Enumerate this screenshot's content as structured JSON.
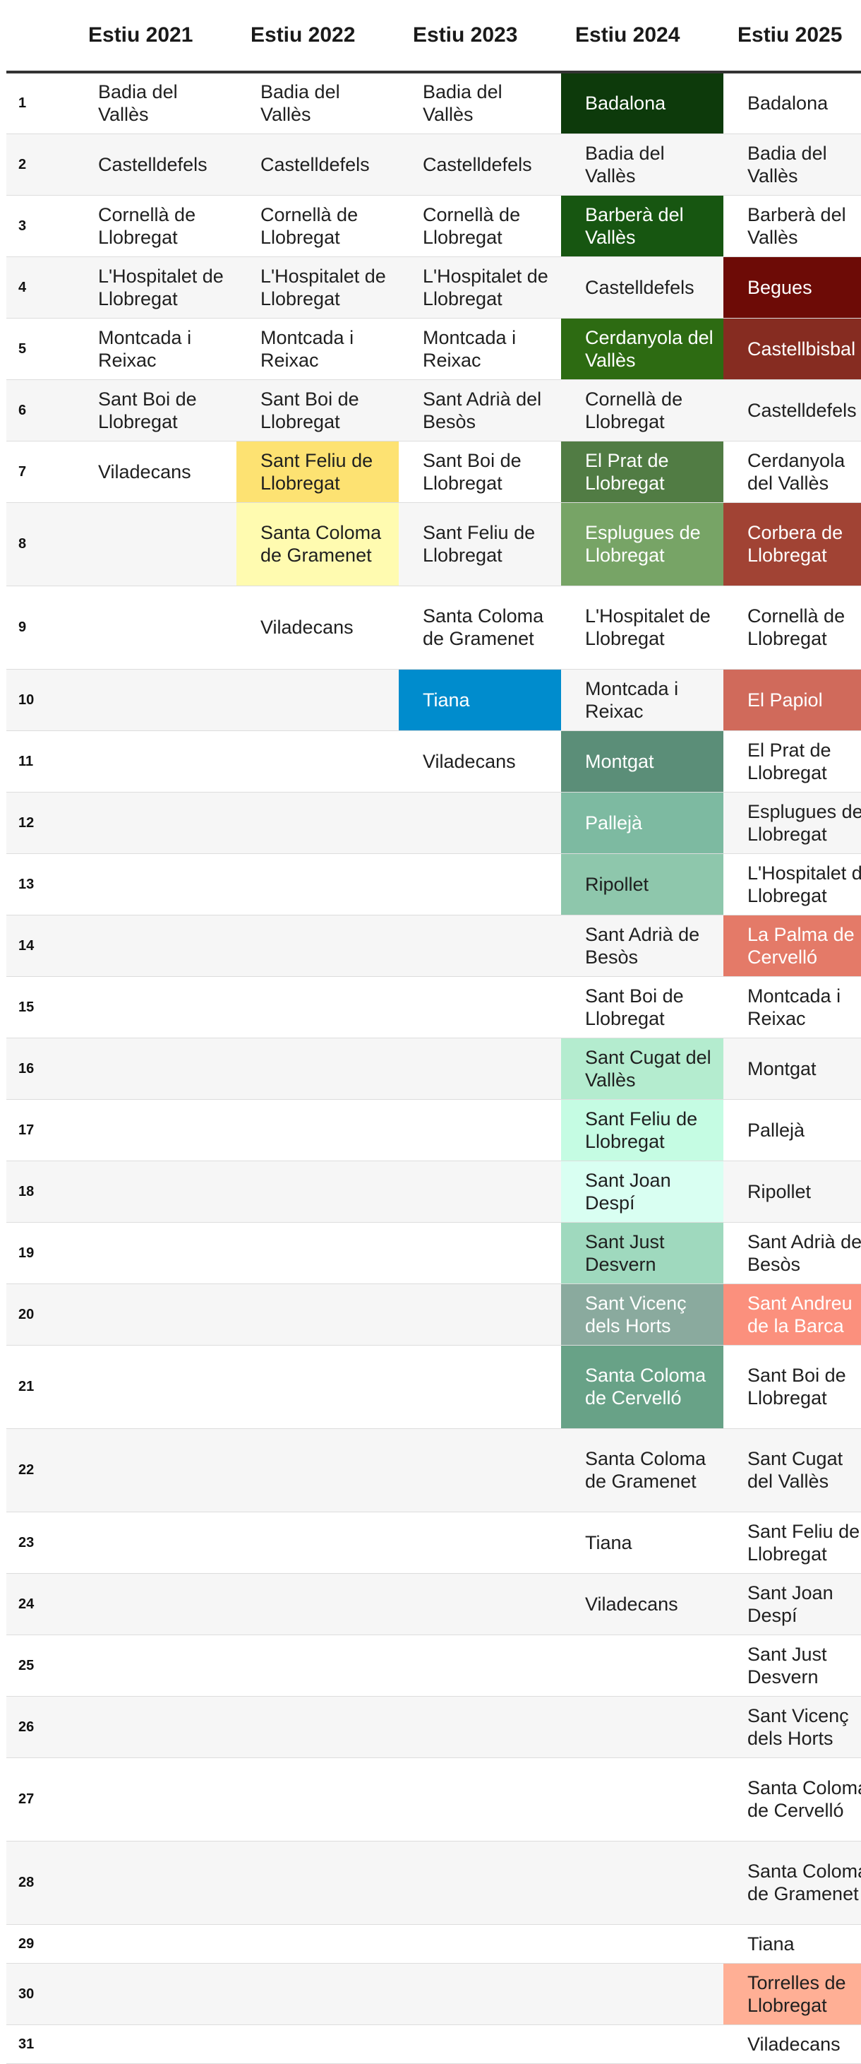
{
  "columns": [
    "",
    "Estiu 2021",
    "Estiu 2022",
    "Estiu 2023",
    "Estiu 2024",
    "Estiu 2025"
  ],
  "rows": [
    {
      "n": "1",
      "c": [
        "Badia del Vallès",
        "Badia del Vallès",
        "Badia del Vallès",
        "Badalona",
        "Badalona"
      ]
    },
    {
      "n": "2",
      "c": [
        "Castelldefels",
        "Castelldefels",
        "Castelldefels",
        "Badia del Vallès",
        "Badia del Vallès"
      ]
    },
    {
      "n": "3",
      "c": [
        "Cornellà de Llobregat",
        "Cornellà de Llobregat",
        "Cornellà de Llobregat",
        "Barberà del Vallès",
        "Barberà del Vallès"
      ]
    },
    {
      "n": "4",
      "c": [
        "L'Hospitalet de Llobregat",
        "L'Hospitalet de Llobregat",
        "L'Hospitalet de Llobregat",
        "Castelldefels",
        "Begues"
      ]
    },
    {
      "n": "5",
      "c": [
        "Montcada i Reixac",
        "Montcada i Reixac",
        "Montcada i Reixac",
        "Cerdanyola del Vallès",
        "Castellbisbal"
      ]
    },
    {
      "n": "6",
      "c": [
        "Sant Boi de Llobregat",
        "Sant Boi de Llobregat",
        "Sant Adrià del Besòs",
        "Cornellà de Llobregat",
        "Castelldefels"
      ]
    },
    {
      "n": "7",
      "c": [
        "Viladecans",
        "Sant Feliu de Llobregat",
        "Sant Boi de Llobregat",
        "El Prat de Llobregat",
        "Cerdanyola del Vallès"
      ]
    },
    {
      "n": "8",
      "c": [
        "",
        "Santa Coloma de Gramenet",
        "Sant Feliu de Llobregat",
        "Esplugues de Llobregat",
        "Corbera de Llobregat"
      ]
    },
    {
      "n": "9",
      "c": [
        "",
        "Viladecans",
        "Santa Coloma de Gramenet",
        "L'Hospitalet de Llobregat",
        "Cornellà de Llobregat"
      ]
    },
    {
      "n": "10",
      "c": [
        "",
        "",
        "Tiana",
        "Montcada i Reixac",
        "El Papiol"
      ]
    },
    {
      "n": "11",
      "c": [
        "",
        "",
        "Viladecans",
        "Montgat",
        "El Prat de Llobregat"
      ]
    },
    {
      "n": "12",
      "c": [
        "",
        "",
        "",
        "Pallejà",
        "Esplugues de Llobregat"
      ]
    },
    {
      "n": "13",
      "c": [
        "",
        "",
        "",
        "Ripollet",
        "L'Hospitalet de Llobregat"
      ]
    },
    {
      "n": "14",
      "c": [
        "",
        "",
        "",
        "Sant Adrià de Besòs",
        "La Palma de Cervelló"
      ]
    },
    {
      "n": "15",
      "c": [
        "",
        "",
        "",
        "Sant Boi de Llobregat",
        "Montcada i Reixac"
      ]
    },
    {
      "n": "16",
      "c": [
        "",
        "",
        "",
        "Sant Cugat del Vallès",
        "Montgat"
      ]
    },
    {
      "n": "17",
      "c": [
        "",
        "",
        "",
        "Sant Feliu de Llobregat",
        "Pallejà"
      ]
    },
    {
      "n": "18",
      "c": [
        "",
        "",
        "",
        "Sant Joan Despí",
        "Ripollet"
      ]
    },
    {
      "n": "19",
      "c": [
        "",
        "",
        "",
        "Sant Just Desvern",
        "Sant Adrià de Besòs"
      ]
    },
    {
      "n": "20",
      "c": [
        "",
        "",
        "",
        "Sant Vicenç dels Horts",
        "Sant Andreu de la Barca"
      ]
    },
    {
      "n": "21",
      "c": [
        "",
        "",
        "",
        "Santa Coloma de Cervelló",
        "Sant Boi de Llobregat"
      ]
    },
    {
      "n": "22",
      "c": [
        "",
        "",
        "",
        "Santa Coloma de Gramenet",
        "Sant Cugat del Vallès"
      ]
    },
    {
      "n": "23",
      "c": [
        "",
        "",
        "",
        "Tiana",
        "Sant Feliu de Llobregat"
      ]
    },
    {
      "n": "24",
      "c": [
        "",
        "",
        "",
        "Viladecans",
        "Sant Joan Despí"
      ]
    },
    {
      "n": "25",
      "c": [
        "",
        "",
        "",
        "",
        "Sant Just Desvern"
      ]
    },
    {
      "n": "26",
      "c": [
        "",
        "",
        "",
        "",
        "Sant Vicenç dels Horts"
      ]
    },
    {
      "n": "27",
      "c": [
        "",
        "",
        "",
        "",
        "Santa Coloma de Cervelló"
      ]
    },
    {
      "n": "28",
      "c": [
        "",
        "",
        "",
        "",
        "Santa Coloma de Gramenet"
      ]
    },
    {
      "n": "29",
      "c": [
        "",
        "",
        "",
        "",
        "Tiana"
      ]
    },
    {
      "n": "30",
      "c": [
        "",
        "",
        "",
        "",
        "Torrelles de Llobregat"
      ]
    },
    {
      "n": "31",
      "c": [
        "",
        "",
        "",
        "",
        "Viladecans"
      ]
    }
  ],
  "highlights": [
    {
      "r": 6,
      "c": 2,
      "bg": "#fde272",
      "fg": "#1f1f1f"
    },
    {
      "r": 7,
      "c": 2,
      "bg": "#fffbb0",
      "fg": "#1f1f1f"
    },
    {
      "r": 9,
      "c": 3,
      "bg": "#008ccd",
      "fg": "#ffffff"
    },
    {
      "r": 0,
      "c": 4,
      "bg": "#0d3a0b",
      "fg": "#ffffff"
    },
    {
      "r": 2,
      "c": 4,
      "bg": "#175611",
      "fg": "#ffffff"
    },
    {
      "r": 4,
      "c": 4,
      "bg": "#2d6b12",
      "fg": "#ffffff"
    },
    {
      "r": 6,
      "c": 4,
      "bg": "#517c44",
      "fg": "#ffffff"
    },
    {
      "r": 7,
      "c": 4,
      "bg": "#77a466",
      "fg": "#ffffff"
    },
    {
      "r": 10,
      "c": 4,
      "bg": "#5b8e78",
      "fg": "#ffffff"
    },
    {
      "r": 11,
      "c": 4,
      "bg": "#7dbaa1",
      "fg": "#ffffff"
    },
    {
      "r": 12,
      "c": 4,
      "bg": "#8ec7ac",
      "fg": "#1f1f1f"
    },
    {
      "r": 15,
      "c": 4,
      "bg": "#b4eccf",
      "fg": "#1f1f1f"
    },
    {
      "r": 16,
      "c": 4,
      "bg": "#c5fce3",
      "fg": "#1f1f1f"
    },
    {
      "r": 17,
      "c": 4,
      "bg": "#d9fff2",
      "fg": "#1f1f1f"
    },
    {
      "r": 18,
      "c": 4,
      "bg": "#9fd9be",
      "fg": "#1f1f1f"
    },
    {
      "r": 19,
      "c": 4,
      "bg": "#8aaa9e",
      "fg": "#ffffff"
    },
    {
      "r": 20,
      "c": 4,
      "bg": "#68a287",
      "fg": "#ffffff"
    },
    {
      "r": 3,
      "c": 5,
      "bg": "#6d0b06",
      "fg": "#ffffff"
    },
    {
      "r": 4,
      "c": 5,
      "bg": "#862c21",
      "fg": "#ffffff"
    },
    {
      "r": 7,
      "c": 5,
      "bg": "#a14334",
      "fg": "#ffffff"
    },
    {
      "r": 9,
      "c": 5,
      "bg": "#d06a5b",
      "fg": "#ffffff"
    },
    {
      "r": 13,
      "c": 5,
      "bg": "#e47a68",
      "fg": "#ffffff"
    },
    {
      "r": 19,
      "c": 5,
      "bg": "#fb907d",
      "fg": "#ffffff"
    },
    {
      "r": 29,
      "c": 5,
      "bg": "#ffaf95",
      "fg": "#1f1f1f"
    }
  ]
}
